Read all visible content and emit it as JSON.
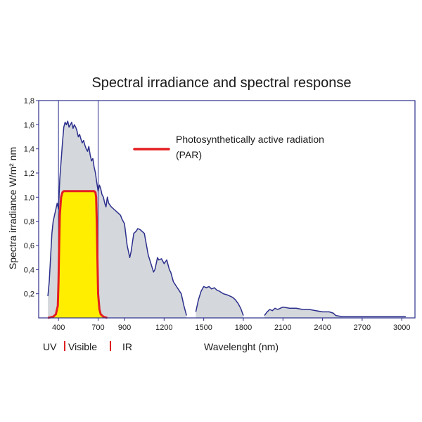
{
  "chart_data": {
    "type": "area",
    "title": "Spectral irradiance and spectral response",
    "xlabel": "Wavelenght (nm)",
    "ylabel": "Spectra irradiance W/m² nm",
    "xlim": [
      250,
      3100
    ],
    "ylim": [
      0,
      1.8
    ],
    "x_ticks": [
      400,
      700,
      900,
      1200,
      1500,
      1800,
      2100,
      2400,
      2700,
      3000
    ],
    "y_ticks": [
      0.2,
      0.4,
      0.6,
      0.8,
      1.0,
      1.2,
      1.4,
      1.6,
      1.8
    ],
    "y_tick_labels": [
      "0,2",
      "0,4",
      "0,6",
      "0,8",
      "1,0",
      "1,2",
      "1,4",
      "1,6",
      "1,8"
    ],
    "grid": false,
    "legend_position": "top-center",
    "band_boundaries": [
      400,
      700
    ],
    "regions": [
      {
        "label": "UV",
        "divider_color": "#e02020"
      },
      {
        "label": "Visible",
        "divider_color": "#e02020"
      },
      {
        "label": "IR"
      }
    ],
    "series": [
      {
        "name": "spectral-irradiance",
        "line_color": "#2c2f8c",
        "fill_color": "#d4d8dc",
        "segments": [
          {
            "x": [
              320,
              330,
              340,
              350,
              360,
              370,
              380,
              390,
              400,
              410,
              420,
              430,
              440,
              450,
              460,
              470,
              480,
              490,
              500,
              510,
              520,
              530,
              540,
              550,
              560,
              570,
              580,
              590,
              600,
              610,
              620,
              630,
              640,
              650,
              660,
              670,
              680,
              690,
              700,
              710,
              720,
              730,
              740,
              750,
              760,
              770,
              780,
              800,
              820,
              850,
              870,
              880,
              900,
              920,
              940,
              950,
              970,
              990,
              1000,
              1020,
              1050,
              1080,
              1100,
              1120,
              1130,
              1140,
              1150,
              1160,
              1180,
              1200,
              1220,
              1240,
              1250,
              1270,
              1300,
              1330,
              1350,
              1370
            ],
            "y": [
              0.18,
              0.3,
              0.5,
              0.7,
              0.8,
              0.85,
              0.9,
              0.95,
              0.9,
              1.15,
              1.3,
              1.45,
              1.58,
              1.62,
              1.6,
              1.63,
              1.58,
              1.6,
              1.62,
              1.57,
              1.6,
              1.58,
              1.55,
              1.5,
              1.52,
              1.48,
              1.45,
              1.47,
              1.43,
              1.4,
              1.38,
              1.42,
              1.35,
              1.3,
              1.32,
              1.25,
              1.2,
              1.12,
              1.05,
              1.1,
              1.07,
              1.02,
              1.0,
              0.95,
              0.92,
              1.0,
              0.95,
              0.92,
              0.9,
              0.87,
              0.85,
              0.82,
              0.78,
              0.6,
              0.5,
              0.55,
              0.7,
              0.72,
              0.74,
              0.73,
              0.7,
              0.52,
              0.45,
              0.38,
              0.4,
              0.45,
              0.5,
              0.48,
              0.49,
              0.45,
              0.48,
              0.4,
              0.38,
              0.3,
              0.25,
              0.2,
              0.1,
              0.02
            ]
          },
          {
            "x": [
              1440,
              1460,
              1480,
              1500,
              1520,
              1540,
              1560,
              1580,
              1600,
              1620,
              1650,
              1680,
              1700,
              1720,
              1740,
              1760,
              1780,
              1800
            ],
            "y": [
              0.05,
              0.15,
              0.22,
              0.26,
              0.25,
              0.26,
              0.24,
              0.25,
              0.23,
              0.22,
              0.2,
              0.19,
              0.18,
              0.17,
              0.15,
              0.12,
              0.08,
              0.02
            ]
          },
          {
            "x": [
              1960,
              1980,
              2000,
              2020,
              2040,
              2060,
              2080,
              2100,
              2150,
              2200,
              2250,
              2300,
              2350,
              2400,
              2450,
              2480,
              2500,
              2550,
              2600,
              2700,
              2800,
              2900,
              3000,
              3030
            ],
            "y": [
              0.02,
              0.05,
              0.07,
              0.06,
              0.08,
              0.07,
              0.08,
              0.09,
              0.08,
              0.08,
              0.07,
              0.07,
              0.06,
              0.05,
              0.05,
              0.04,
              0.02,
              0.01,
              0.01,
              0.01,
              0.01,
              0.01,
              0.01,
              0.01
            ]
          }
        ]
      },
      {
        "name": "Photosynthetically active radiation (PAR)",
        "legend_lines": [
          "Photosynthetically active radiation",
          "(PAR)"
        ],
        "line_color": "#e41e20",
        "fill_color": "#ffee00",
        "x": [
          320,
          360,
          380,
          395,
          400,
          405,
          410,
          420,
          430,
          440,
          460,
          500,
          550,
          600,
          650,
          670,
          680,
          685,
          690,
          695,
          700,
          710,
          720,
          740,
          770
        ],
        "y": [
          0.0,
          0.01,
          0.03,
          0.1,
          0.3,
          0.6,
          0.85,
          1.0,
          1.04,
          1.05,
          1.05,
          1.05,
          1.05,
          1.05,
          1.05,
          1.05,
          1.04,
          1.0,
          0.8,
          0.5,
          0.2,
          0.07,
          0.03,
          0.01,
          0.0
        ]
      }
    ]
  }
}
